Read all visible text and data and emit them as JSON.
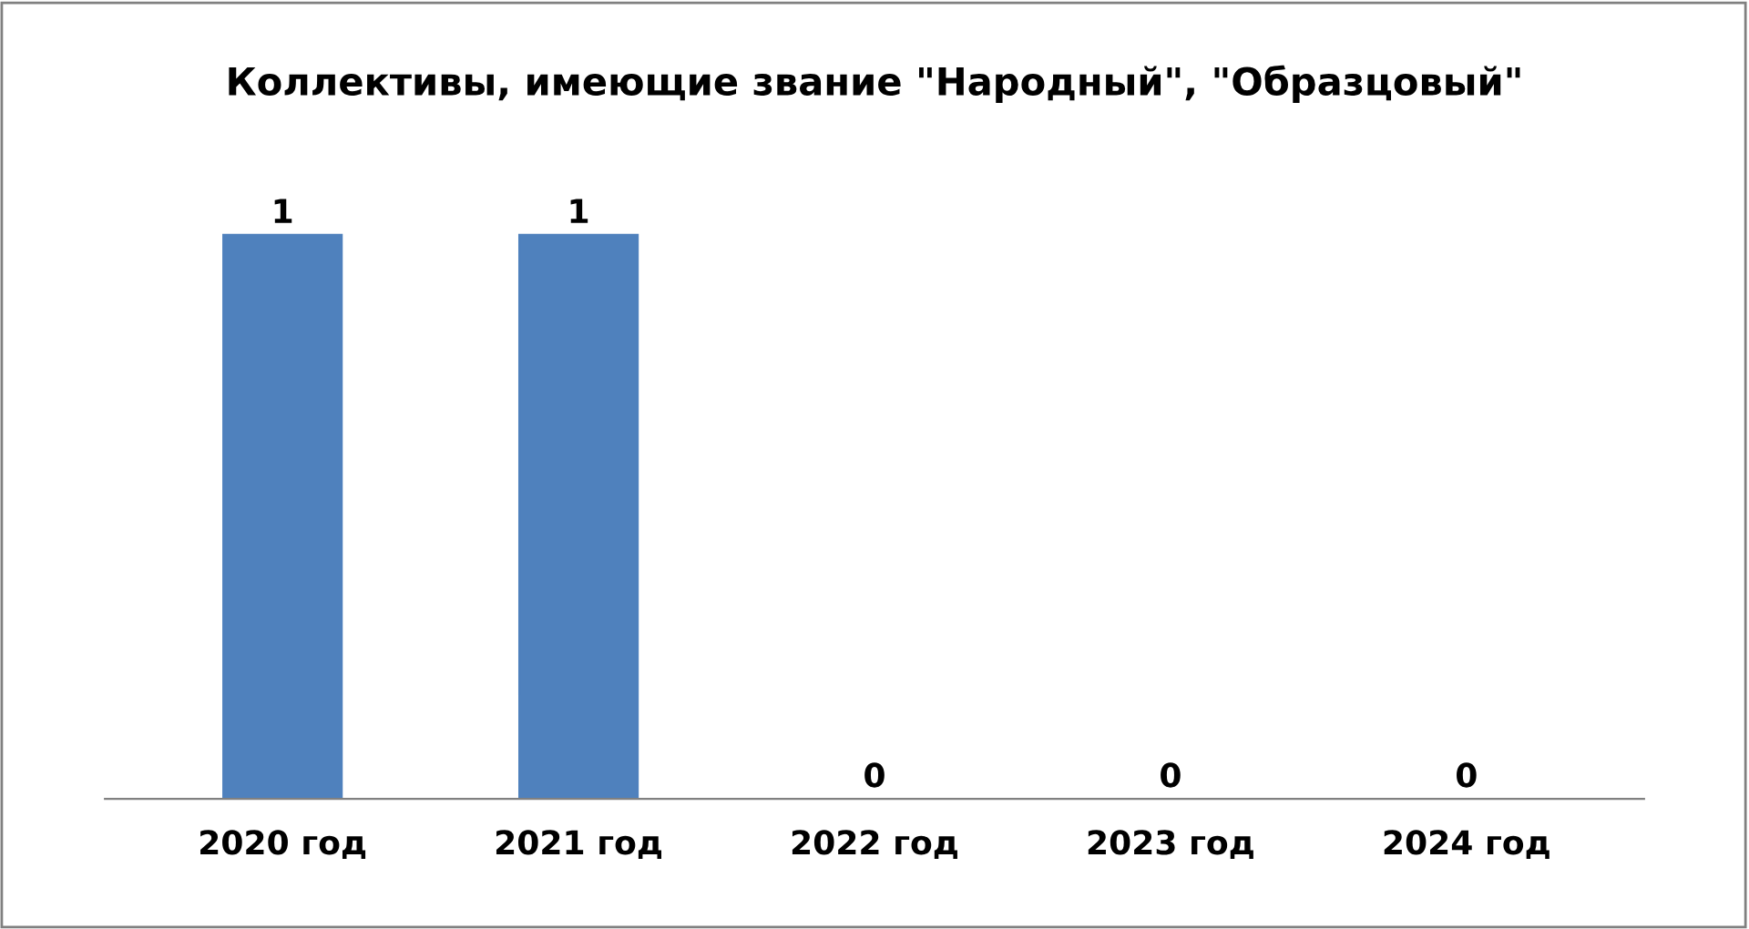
{
  "chart_data": {
    "type": "bar",
    "title": "Коллективы, имеющие звание \"Народный\", \"Образцовый\"",
    "categories": [
      "2020 год",
      "2021 год",
      "2022 год",
      "2023 год",
      "2024 год"
    ],
    "values": [
      1,
      1,
      0,
      0,
      0
    ],
    "color": "#4f81bd",
    "data_labels": true,
    "grid": false,
    "legend": false
  }
}
